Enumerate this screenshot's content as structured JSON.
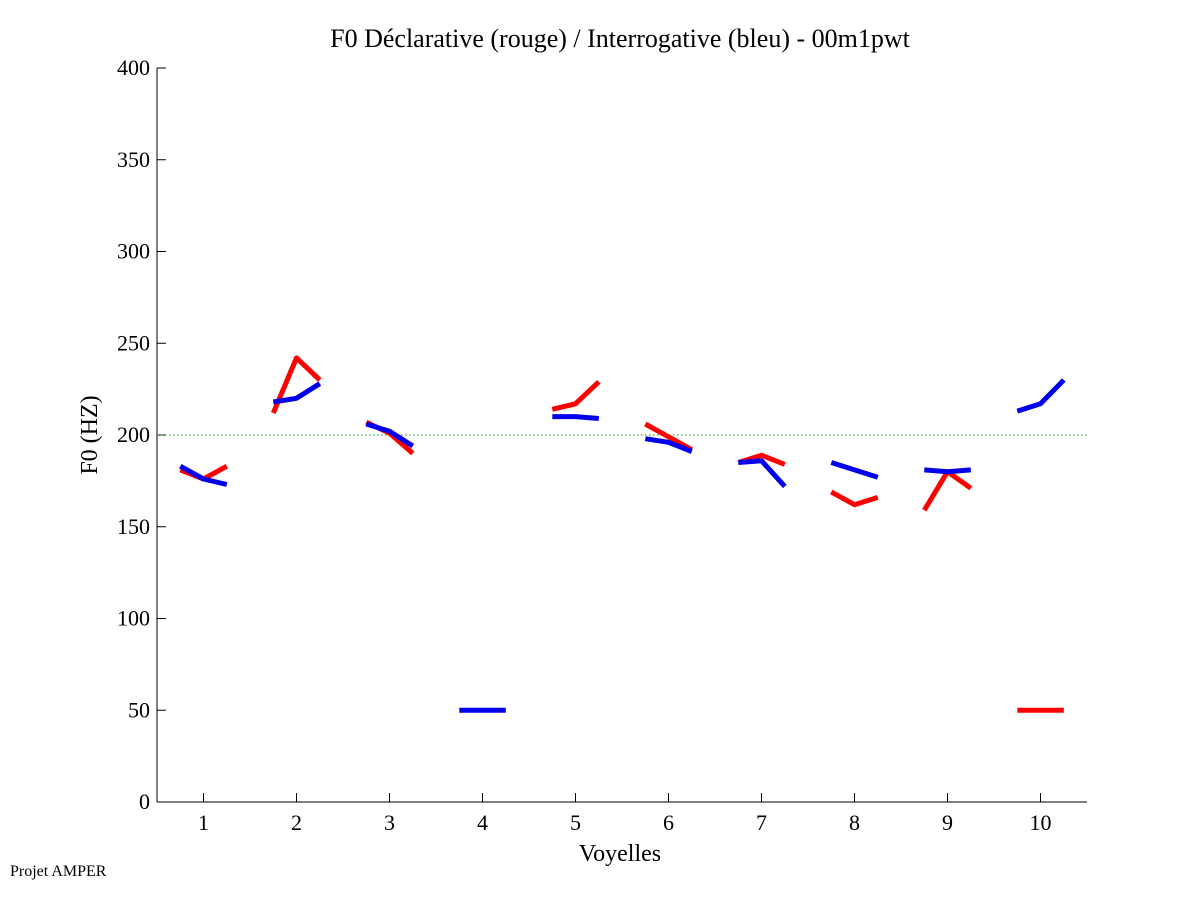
{
  "footer_text": "Projet AMPER",
  "chart_data": {
    "type": "line",
    "title": "F0 Déclarative (rouge) / Interrogative (bleu) - 00m1pwt",
    "xlabel": "Voyelles",
    "ylabel": "F0 (HZ)",
    "xlim": [
      0.5,
      10.5
    ],
    "ylim": [
      0,
      400
    ],
    "xticks": [
      1,
      2,
      3,
      4,
      5,
      6,
      7,
      8,
      9,
      10
    ],
    "xtick_labels": [
      "1",
      "2",
      "3",
      "4",
      "5",
      "6",
      "7",
      "8",
      "9",
      "10"
    ],
    "yticks": [
      0,
      50,
      100,
      150,
      200,
      250,
      300,
      350,
      400
    ],
    "ytick_labels": [
      "0",
      "50",
      "100",
      "150",
      "200",
      "250",
      "300",
      "350",
      "400"
    ],
    "reference_line": {
      "y": 200,
      "color": "#22bb22",
      "style": "dotted"
    },
    "series": [
      {
        "name": "Déclarative (rouge)",
        "color": "#ff0000",
        "segments": [
          {
            "x": [
              0.75,
              1.0,
              1.25
            ],
            "y": [
              181,
              176,
              183
            ]
          },
          {
            "x": [
              1.75,
              2.0,
              2.25
            ],
            "y": [
              212,
              242,
              230
            ]
          },
          {
            "x": [
              2.75,
              3.0,
              3.25
            ],
            "y": [
              207,
              201,
              190
            ]
          },
          {
            "x": [
              4.75,
              5.0,
              5.25
            ],
            "y": [
              214,
              217,
              229
            ]
          },
          {
            "x": [
              5.75,
              6.0,
              6.25
            ],
            "y": [
              206,
              199,
              192
            ]
          },
          {
            "x": [
              6.75,
              7.0,
              7.25
            ],
            "y": [
              185,
              189,
              184
            ]
          },
          {
            "x": [
              7.75,
              8.0,
              8.25
            ],
            "y": [
              169,
              162,
              166
            ]
          },
          {
            "x": [
              8.75,
              9.0,
              9.25
            ],
            "y": [
              159,
              180,
              171
            ]
          },
          {
            "x": [
              9.75,
              10.0,
              10.25
            ],
            "y": [
              50,
              50,
              50
            ]
          }
        ]
      },
      {
        "name": "Interrogative (bleu)",
        "color": "#0000ee",
        "segments": [
          {
            "x": [
              0.75,
              1.0,
              1.25
            ],
            "y": [
              183,
              176,
              173
            ]
          },
          {
            "x": [
              1.75,
              2.0,
              2.25
            ],
            "y": [
              218,
              220,
              228
            ]
          },
          {
            "x": [
              2.75,
              3.0,
              3.25
            ],
            "y": [
              206,
              202,
              194
            ]
          },
          {
            "x": [
              3.75,
              4.0,
              4.25
            ],
            "y": [
              50,
              50,
              50
            ]
          },
          {
            "x": [
              4.75,
              5.0,
              5.25
            ],
            "y": [
              210,
              210,
              209
            ]
          },
          {
            "x": [
              5.75,
              6.0,
              6.25
            ],
            "y": [
              198,
              196,
              191
            ]
          },
          {
            "x": [
              6.75,
              7.0,
              7.25
            ],
            "y": [
              185,
              186,
              172
            ]
          },
          {
            "x": [
              7.75,
              8.0,
              8.25
            ],
            "y": [
              185,
              181,
              177
            ]
          },
          {
            "x": [
              8.75,
              9.0,
              9.25
            ],
            "y": [
              181,
              180,
              181
            ]
          },
          {
            "x": [
              9.75,
              10.0,
              10.25
            ],
            "y": [
              213,
              217,
              230
            ]
          }
        ]
      }
    ]
  }
}
